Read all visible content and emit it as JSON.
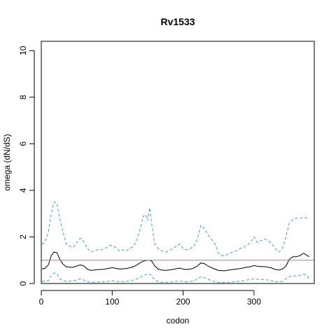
{
  "chart_data": {
    "type": "line",
    "title": "Rv1533",
    "xlabel": "codon",
    "ylabel": "omega (dN/dS)",
    "xlim": [
      0,
      385
    ],
    "ylim": [
      0,
      10.4
    ],
    "x_ticks": [
      0,
      100,
      200,
      300
    ],
    "y_ticks": [
      0,
      2,
      4,
      6,
      8,
      10
    ],
    "reference_line": {
      "y": 1,
      "color": "#cc66cc"
    },
    "series": [
      {
        "role": "upper",
        "color": "#3a9fd8",
        "dash": "dashed",
        "points": [
          [
            1,
            1.7
          ],
          [
            5,
            1.75
          ],
          [
            10,
            2.2
          ],
          [
            14,
            3.0
          ],
          [
            18,
            3.5
          ],
          [
            22,
            3.45
          ],
          [
            26,
            2.8
          ],
          [
            30,
            2.3
          ],
          [
            35,
            1.7
          ],
          [
            40,
            1.6
          ],
          [
            45,
            1.55
          ],
          [
            50,
            1.75
          ],
          [
            55,
            1.95
          ],
          [
            60,
            1.8
          ],
          [
            65,
            1.5
          ],
          [
            70,
            1.35
          ],
          [
            75,
            1.4
          ],
          [
            80,
            1.45
          ],
          [
            85,
            1.45
          ],
          [
            90,
            1.5
          ],
          [
            95,
            1.6
          ],
          [
            100,
            1.65
          ],
          [
            105,
            1.55
          ],
          [
            110,
            1.4
          ],
          [
            115,
            1.45
          ],
          [
            120,
            1.4
          ],
          [
            125,
            1.5
          ],
          [
            130,
            1.6
          ],
          [
            135,
            1.9
          ],
          [
            140,
            2.4
          ],
          [
            144,
            2.9
          ],
          [
            148,
            2.95
          ],
          [
            150,
            2.7
          ],
          [
            153,
            3.25
          ],
          [
            156,
            2.5
          ],
          [
            160,
            1.7
          ],
          [
            165,
            1.5
          ],
          [
            170,
            1.4
          ],
          [
            175,
            1.35
          ],
          [
            180,
            1.4
          ],
          [
            185,
            1.5
          ],
          [
            190,
            1.6
          ],
          [
            195,
            1.7
          ],
          [
            200,
            1.5
          ],
          [
            205,
            1.45
          ],
          [
            210,
            1.5
          ],
          [
            215,
            1.6
          ],
          [
            220,
            1.9
          ],
          [
            225,
            2.5
          ],
          [
            230,
            2.35
          ],
          [
            235,
            2.1
          ],
          [
            240,
            1.9
          ],
          [
            245,
            1.7
          ],
          [
            250,
            1.3
          ],
          [
            255,
            1.2
          ],
          [
            260,
            1.2
          ],
          [
            265,
            1.3
          ],
          [
            270,
            1.35
          ],
          [
            275,
            1.4
          ],
          [
            280,
            1.5
          ],
          [
            285,
            1.55
          ],
          [
            290,
            1.65
          ],
          [
            295,
            1.75
          ],
          [
            300,
            2.0
          ],
          [
            305,
            1.75
          ],
          [
            310,
            1.85
          ],
          [
            315,
            1.9
          ],
          [
            320,
            1.85
          ],
          [
            325,
            1.7
          ],
          [
            330,
            1.5
          ],
          [
            335,
            1.35
          ],
          [
            340,
            1.5
          ],
          [
            345,
            2.0
          ],
          [
            350,
            2.6
          ],
          [
            355,
            2.75
          ],
          [
            360,
            2.8
          ],
          [
            365,
            2.8
          ],
          [
            370,
            2.85
          ],
          [
            375,
            2.8
          ],
          [
            378,
            2.75
          ]
        ]
      },
      {
        "role": "estimate",
        "color": "#000000",
        "dash": "solid",
        "points": [
          [
            1,
            0.62
          ],
          [
            5,
            0.65
          ],
          [
            10,
            0.8
          ],
          [
            14,
            1.2
          ],
          [
            18,
            1.35
          ],
          [
            22,
            1.33
          ],
          [
            26,
            1.05
          ],
          [
            30,
            0.85
          ],
          [
            35,
            0.72
          ],
          [
            40,
            0.7
          ],
          [
            45,
            0.7
          ],
          [
            50,
            0.75
          ],
          [
            55,
            0.8
          ],
          [
            60,
            0.75
          ],
          [
            65,
            0.62
          ],
          [
            70,
            0.56
          ],
          [
            75,
            0.58
          ],
          [
            80,
            0.6
          ],
          [
            85,
            0.6
          ],
          [
            90,
            0.62
          ],
          [
            95,
            0.65
          ],
          [
            100,
            0.68
          ],
          [
            105,
            0.65
          ],
          [
            110,
            0.62
          ],
          [
            115,
            0.63
          ],
          [
            120,
            0.64
          ],
          [
            125,
            0.68
          ],
          [
            130,
            0.72
          ],
          [
            135,
            0.8
          ],
          [
            140,
            0.9
          ],
          [
            145,
            0.97
          ],
          [
            150,
            1.0
          ],
          [
            153,
            1.0
          ],
          [
            156,
            0.95
          ],
          [
            160,
            0.75
          ],
          [
            165,
            0.62
          ],
          [
            170,
            0.58
          ],
          [
            175,
            0.56
          ],
          [
            180,
            0.58
          ],
          [
            185,
            0.6
          ],
          [
            190,
            0.63
          ],
          [
            195,
            0.66
          ],
          [
            200,
            0.62
          ],
          [
            205,
            0.6
          ],
          [
            210,
            0.62
          ],
          [
            215,
            0.66
          ],
          [
            220,
            0.75
          ],
          [
            225,
            0.88
          ],
          [
            230,
            0.85
          ],
          [
            235,
            0.75
          ],
          [
            240,
            0.68
          ],
          [
            245,
            0.62
          ],
          [
            250,
            0.56
          ],
          [
            255,
            0.55
          ],
          [
            260,
            0.55
          ],
          [
            265,
            0.58
          ],
          [
            270,
            0.6
          ],
          [
            275,
            0.62
          ],
          [
            280,
            0.64
          ],
          [
            285,
            0.67
          ],
          [
            290,
            0.7
          ],
          [
            295,
            0.72
          ],
          [
            300,
            0.77
          ],
          [
            305,
            0.74
          ],
          [
            310,
            0.73
          ],
          [
            315,
            0.72
          ],
          [
            320,
            0.7
          ],
          [
            325,
            0.66
          ],
          [
            330,
            0.6
          ],
          [
            335,
            0.58
          ],
          [
            340,
            0.62
          ],
          [
            345,
            0.75
          ],
          [
            350,
            1.05
          ],
          [
            355,
            1.15
          ],
          [
            360,
            1.15
          ],
          [
            365,
            1.2
          ],
          [
            370,
            1.3
          ],
          [
            375,
            1.2
          ],
          [
            378,
            1.15
          ]
        ]
      },
      {
        "role": "lower",
        "color": "#3a9fd8",
        "dash": "dashed",
        "points": [
          [
            1,
            0.1
          ],
          [
            5,
            0.1
          ],
          [
            10,
            0.12
          ],
          [
            14,
            0.35
          ],
          [
            18,
            0.45
          ],
          [
            22,
            0.42
          ],
          [
            26,
            0.2
          ],
          [
            30,
            0.12
          ],
          [
            35,
            0.1
          ],
          [
            40,
            0.1
          ],
          [
            45,
            0.12
          ],
          [
            50,
            0.15
          ],
          [
            55,
            0.2
          ],
          [
            60,
            0.15
          ],
          [
            65,
            0.08
          ],
          [
            70,
            0.05
          ],
          [
            75,
            0.05
          ],
          [
            80,
            0.06
          ],
          [
            85,
            0.07
          ],
          [
            90,
            0.08
          ],
          [
            95,
            0.1
          ],
          [
            100,
            0.12
          ],
          [
            105,
            0.1
          ],
          [
            110,
            0.08
          ],
          [
            115,
            0.08
          ],
          [
            120,
            0.09
          ],
          [
            125,
            0.12
          ],
          [
            130,
            0.15
          ],
          [
            135,
            0.2
          ],
          [
            140,
            0.28
          ],
          [
            145,
            0.35
          ],
          [
            150,
            0.4
          ],
          [
            153,
            0.42
          ],
          [
            156,
            0.3
          ],
          [
            160,
            0.15
          ],
          [
            165,
            0.08
          ],
          [
            170,
            0.05
          ],
          [
            175,
            0.05
          ],
          [
            180,
            0.06
          ],
          [
            185,
            0.07
          ],
          [
            190,
            0.09
          ],
          [
            195,
            0.12
          ],
          [
            200,
            0.08
          ],
          [
            205,
            0.07
          ],
          [
            210,
            0.08
          ],
          [
            215,
            0.12
          ],
          [
            220,
            0.18
          ],
          [
            225,
            0.28
          ],
          [
            230,
            0.25
          ],
          [
            235,
            0.18
          ],
          [
            240,
            0.12
          ],
          [
            245,
            0.08
          ],
          [
            250,
            0.05
          ],
          [
            255,
            0.04
          ],
          [
            260,
            0.04
          ],
          [
            265,
            0.06
          ],
          [
            270,
            0.07
          ],
          [
            275,
            0.08
          ],
          [
            280,
            0.1
          ],
          [
            285,
            0.12
          ],
          [
            290,
            0.15
          ],
          [
            295,
            0.17
          ],
          [
            300,
            0.2
          ],
          [
            305,
            0.18
          ],
          [
            310,
            0.17
          ],
          [
            315,
            0.16
          ],
          [
            320,
            0.15
          ],
          [
            325,
            0.12
          ],
          [
            330,
            0.08
          ],
          [
            335,
            0.06
          ],
          [
            340,
            0.1
          ],
          [
            345,
            0.2
          ],
          [
            350,
            0.3
          ],
          [
            355,
            0.32
          ],
          [
            360,
            0.33
          ],
          [
            365,
            0.35
          ],
          [
            370,
            0.4
          ],
          [
            375,
            0.35
          ],
          [
            378,
            0.15
          ]
        ]
      }
    ]
  }
}
